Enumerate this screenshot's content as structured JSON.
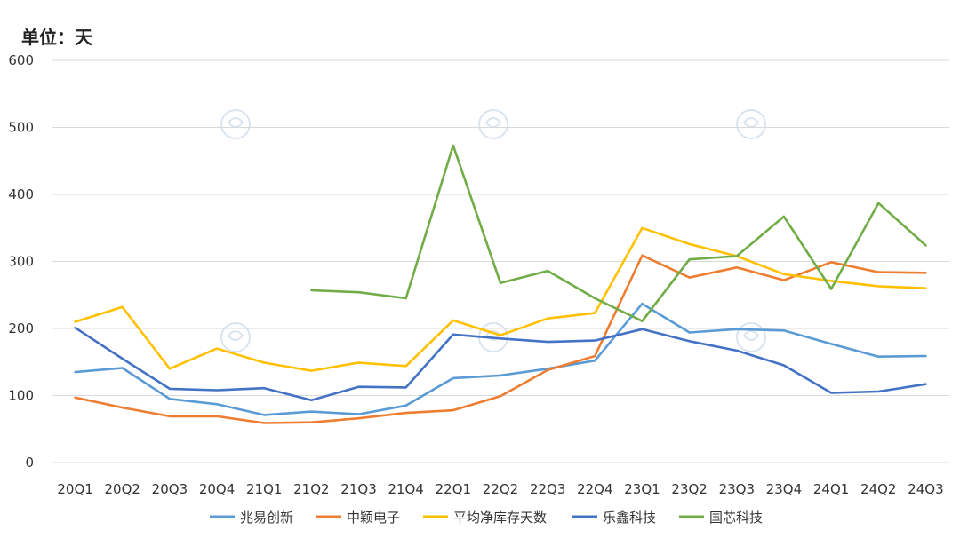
{
  "unit_label": "单位：天",
  "chart_data": {
    "type": "line",
    "ylabel": "",
    "xlabel": "",
    "ylim": [
      0,
      600
    ],
    "yticks": [
      "0",
      "100",
      "200",
      "300",
      "400",
      "500",
      "600"
    ],
    "categories": [
      "20Q1",
      "20Q2",
      "20Q3",
      "20Q4",
      "21Q1",
      "21Q2",
      "21Q3",
      "21Q4",
      "22Q1",
      "22Q2",
      "22Q3",
      "22Q4",
      "23Q1",
      "23Q2",
      "23Q3",
      "23Q4",
      "24Q1",
      "24Q2",
      "24Q3"
    ],
    "grid": true,
    "legend_position": "bottom",
    "series": [
      {
        "name": "兆易创新",
        "color": "#5b9bd5",
        "values": [
          135,
          141,
          95,
          87,
          71,
          76,
          72,
          85,
          126,
          130,
          140,
          152,
          237,
          194,
          199,
          197,
          177,
          158,
          159
        ]
      },
      {
        "name": "中颖电子",
        "color": "#ed7d31",
        "values": [
          97,
          82,
          69,
          69,
          59,
          60,
          66,
          74,
          78,
          99,
          138,
          159,
          309,
          276,
          291,
          272,
          299,
          284,
          283
        ]
      },
      {
        "name": "平均净库存天数",
        "color": "#ffc000",
        "values": [
          210,
          232,
          140,
          170,
          149,
          137,
          149,
          144,
          212,
          190,
          215,
          223,
          350,
          326,
          308,
          281,
          271,
          263,
          260
        ]
      },
      {
        "name": "乐鑫科技",
        "color": "#4472c4",
        "values": [
          201,
          155,
          110,
          108,
          111,
          93,
          113,
          112,
          191,
          185,
          180,
          182,
          199,
          181,
          167,
          145,
          104,
          106,
          117
        ]
      },
      {
        "name": "国芯科技",
        "color": "#70ad47",
        "values": [
          null,
          null,
          null,
          null,
          null,
          257,
          254,
          245,
          473,
          268,
          286,
          245,
          211,
          303,
          308,
          367,
          259,
          387,
          324
        ]
      }
    ]
  }
}
